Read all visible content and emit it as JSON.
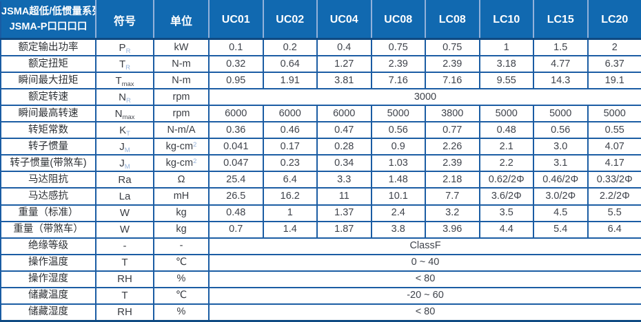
{
  "colors": {
    "header_blue": "#1169b0",
    "header_separator": "#93b2da",
    "grid_blue": "#1a5ca3",
    "subscript_blue": "#94b1d8"
  },
  "table": {
    "header": {
      "title_line1": "JSMA超低/低惯量系列",
      "title_line2": "JSMA-P口口口口",
      "symbol_col": "符号",
      "unit_col": "单位",
      "models": [
        "UC01",
        "UC02",
        "UC04",
        "UC08",
        "LC08",
        "LC10",
        "LC15",
        "LC20"
      ]
    },
    "rows": [
      {
        "label": "额定输出功率",
        "sym": "P",
        "sub": "R",
        "unit": "kW",
        "values": [
          "0.1",
          "0.2",
          "0.4",
          "0.75",
          "0.75",
          "1",
          "1.5",
          "2"
        ]
      },
      {
        "label": "额定扭矩",
        "sym": "T",
        "sub": "R",
        "unit": "N-m",
        "values": [
          "0.32",
          "0.64",
          "1.27",
          "2.39",
          "2.39",
          "3.18",
          "4.77",
          "6.37"
        ]
      },
      {
        "label": "瞬间最大扭矩",
        "sym": "T",
        "sub": "max",
        "unit": "N-m",
        "values": [
          "0.95",
          "1.91",
          "3.81",
          "7.16",
          "7.16",
          "9.55",
          "14.3",
          "19.1"
        ]
      },
      {
        "label": "额定转速",
        "sym": "N",
        "sub": "R",
        "unit": "rpm",
        "merged": "3000"
      },
      {
        "label": "瞬间最高转速",
        "sym": "N",
        "sub": "max",
        "unit": "rpm",
        "values": [
          "6000",
          "6000",
          "6000",
          "5000",
          "3800",
          "5000",
          "5000",
          "5000"
        ]
      },
      {
        "label": "转矩常数",
        "sym": "K",
        "sub": "T",
        "unit": "N-m/A",
        "values": [
          "0.36",
          "0.46",
          "0.47",
          "0.56",
          "0.77",
          "0.48",
          "0.56",
          "0.55"
        ]
      },
      {
        "label": "转子惯量",
        "sym": "J",
        "sub": "M",
        "unit": "kg-cm",
        "unit_sup": "2",
        "values": [
          "0.041",
          "0.17",
          "0.28",
          "0.9",
          "2.26",
          "2.1",
          "3.0",
          "4.07"
        ]
      },
      {
        "label": "转子惯量(带煞车)",
        "sym": "J",
        "sub": "M",
        "unit": "kg-cm",
        "unit_sup": "2",
        "values": [
          "0.047",
          "0.23",
          "0.34",
          "1.03",
          "2.39",
          "2.2",
          "3.1",
          "4.17"
        ]
      },
      {
        "label": "马达阻抗",
        "sym": "Ra",
        "unit": "Ω",
        "values": [
          "25.4",
          "6.4",
          "3.3",
          "1.48",
          "2.18",
          "0.62/2Φ",
          "0.46/2Φ",
          "0.33/2Φ"
        ]
      },
      {
        "label": "马达感抗",
        "sym": "La",
        "unit": "mH",
        "values": [
          "26.5",
          "16.2",
          "11",
          "10.1",
          "7.7",
          "3.6/2Φ",
          "3.0/2Φ",
          "2.2/2Φ"
        ]
      },
      {
        "label": "重量（标准）",
        "sym": "W",
        "unit": "kg",
        "values": [
          "0.48",
          "1",
          "1.37",
          "2.4",
          "3.2",
          "3.5",
          "4.5",
          "5.5"
        ]
      },
      {
        "label": "重量（带煞车）",
        "sym": "W",
        "unit": "kg",
        "values": [
          "0.7",
          "1.4",
          "1.87",
          "3.8",
          "3.96",
          "4.4",
          "5.4",
          "6.4"
        ]
      },
      {
        "label": "绝缘等级",
        "sym": "-",
        "unit": "-",
        "merged": "ClassF"
      },
      {
        "label": "操作温度",
        "sym": "T",
        "unit": "℃",
        "merged": "0 ~ 40"
      },
      {
        "label": "操作湿度",
        "sym": "RH",
        "unit": "%",
        "merged": "< 80"
      },
      {
        "label": "储藏温度",
        "sym": "T",
        "unit": "℃",
        "merged": "-20 ~ 60"
      },
      {
        "label": "储藏湿度",
        "sym": "RH",
        "unit": "%",
        "merged": "< 80"
      }
    ]
  }
}
